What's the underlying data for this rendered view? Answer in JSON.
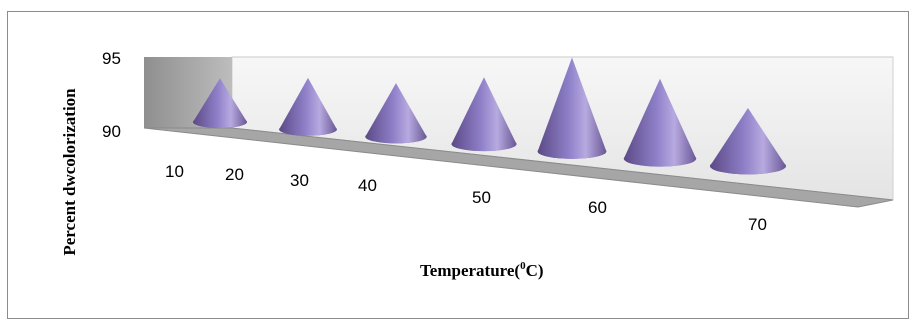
{
  "chart_data": {
    "type": "bar",
    "style": "3d-cone",
    "title": "",
    "xlabel": "Temperature(",
    "xlabel_sup": "0",
    "xlabel_unit": "C)",
    "ylabel": "Percent dwcolorization",
    "ylim": [
      90,
      95
    ],
    "yticks": [
      "95",
      "90"
    ],
    "categories": [
      "10",
      "20",
      "30",
      "40",
      "50",
      "60",
      "70"
    ],
    "values": [
      92.4,
      92.8,
      92.8,
      93.5,
      95.0,
      94.0,
      92.6
    ],
    "legend": "none",
    "grid": false,
    "colors": {
      "cone_dark": "#5c4a86",
      "cone_mid": "#8e7fc8",
      "cone_light": "#b7aae0",
      "floor": "#a6a6a6",
      "wall_left": "#9c9c9c",
      "wall_back": "#ececec"
    }
  }
}
